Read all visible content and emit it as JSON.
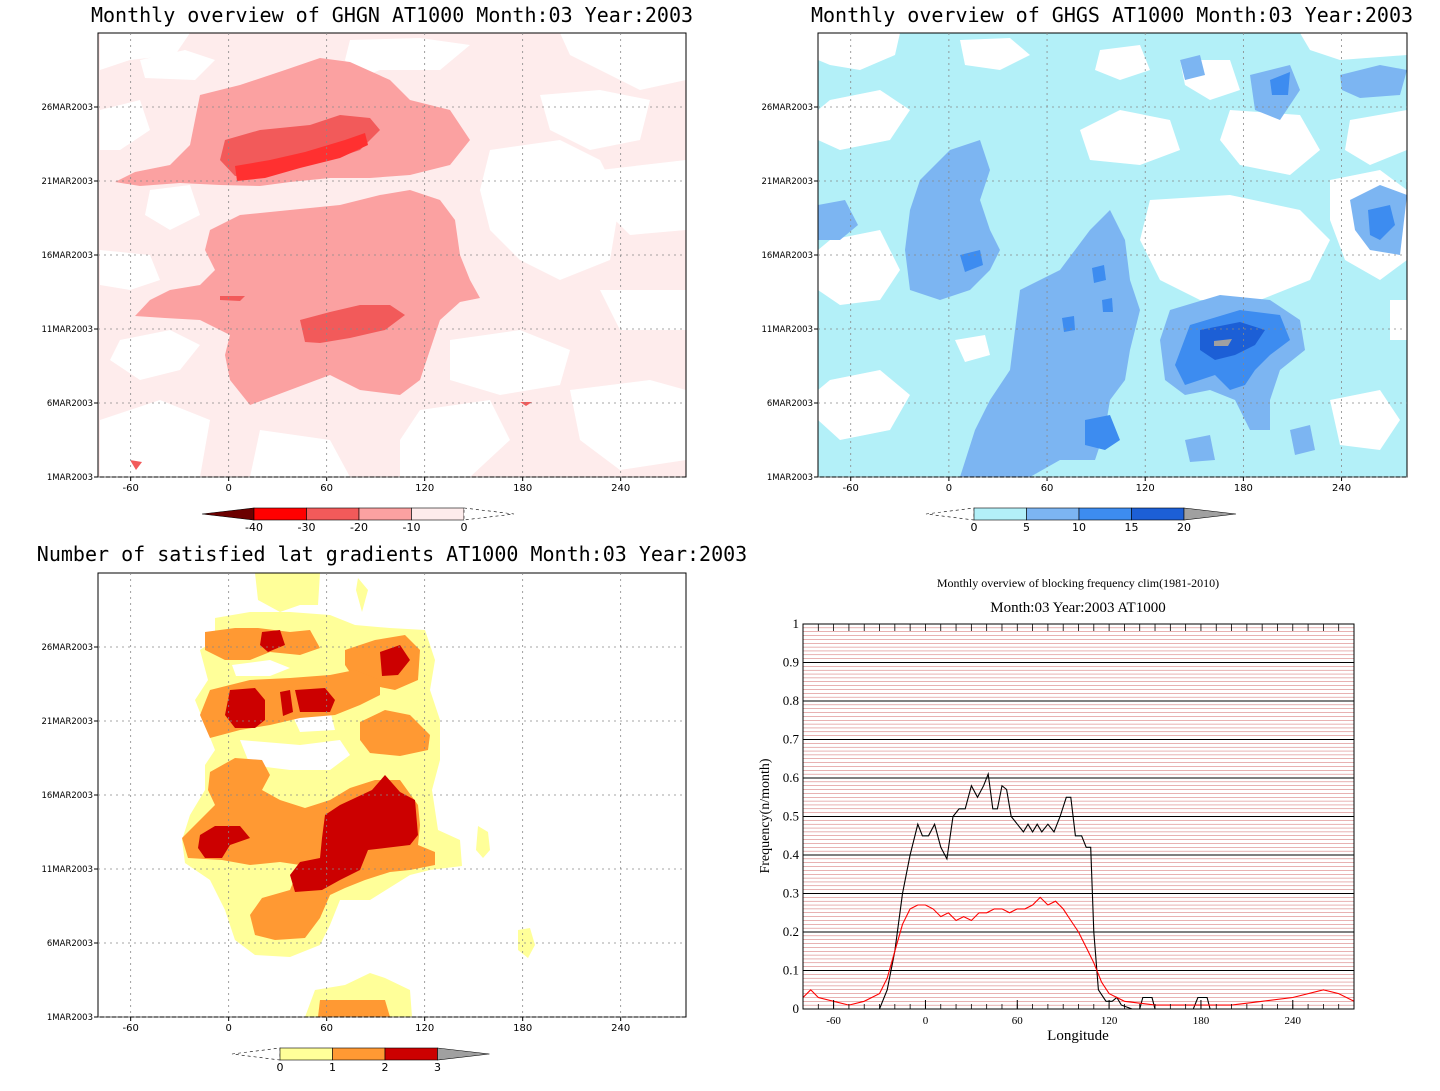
{
  "panels": {
    "ghgn": {
      "title": "Monthly overview of GHGN AT1000 Month:03 Year:2003",
      "colorbar": {
        "labels": [
          "-40",
          "-30",
          "-20",
          "-10",
          "0"
        ],
        "colors": [
          "#6b0000",
          "#ff0000",
          "#f25a5a",
          "#fba1a1",
          "#feecec"
        ]
      }
    },
    "ghgs": {
      "title": "Monthly overview of GHGS AT1000 Month:03 Year:2003",
      "colorbar": {
        "labels": [
          "0",
          "5",
          "10",
          "15",
          "20"
        ],
        "colors": [
          "#b3f0f8",
          "#7cb5f2",
          "#3d8cf0",
          "#1c5fd6",
          "#a0a0a0"
        ]
      }
    },
    "nsat": {
      "title": "Number of satisfied lat gradients AT1000 Month:03 Year:2003",
      "colorbar": {
        "labels": [
          "0",
          "1",
          "2",
          "3"
        ],
        "colors": [
          "#ffff99",
          "#ff9933",
          "#cc0000",
          "#a0a0a0"
        ]
      }
    }
  },
  "map_axes": {
    "x_ticks": [
      "-60",
      "0",
      "60",
      "120",
      "180",
      "240"
    ],
    "x_values": [
      -60,
      0,
      60,
      120,
      180,
      240
    ],
    "x_range": [
      -80,
      280
    ],
    "y_ticks": [
      "1MAR2003",
      "6MAR2003",
      "11MAR2003",
      "16MAR2003",
      "21MAR2003",
      "26MAR2003"
    ],
    "y_values": [
      1,
      6,
      11,
      16,
      21,
      26
    ],
    "y_range": [
      1,
      31
    ]
  },
  "chart_data": {
    "type": "line",
    "title": "Monthly overview of blocking frequency clim(1981-2010)",
    "subtitle": "Month:03 Year:2003  AT1000",
    "xlabel": "Longitude",
    "ylabel": "Frequency(n/month)",
    "xlim": [
      -80,
      280
    ],
    "ylim": [
      0,
      1
    ],
    "x_ticks": [
      -60,
      0,
      60,
      120,
      180,
      240
    ],
    "y_ticks": [
      0,
      0.1,
      0.2,
      0.3,
      0.4,
      0.5,
      0.6,
      0.7,
      0.8,
      0.9,
      1
    ],
    "grid": true,
    "series": [
      {
        "color": "#000000",
        "points": [
          [
            -80,
            0
          ],
          [
            -30,
            0
          ],
          [
            -25,
            0.05
          ],
          [
            -20,
            0.15
          ],
          [
            -15,
            0.3
          ],
          [
            -10,
            0.4
          ],
          [
            -5,
            0.48
          ],
          [
            -2,
            0.45
          ],
          [
            2,
            0.45
          ],
          [
            6,
            0.48
          ],
          [
            10,
            0.42
          ],
          [
            14,
            0.39
          ],
          [
            18,
            0.5
          ],
          [
            22,
            0.52
          ],
          [
            26,
            0.52
          ],
          [
            30,
            0.58
          ],
          [
            34,
            0.55
          ],
          [
            38,
            0.58
          ],
          [
            41,
            0.61
          ],
          [
            44,
            0.52
          ],
          [
            47,
            0.52
          ],
          [
            50,
            0.58
          ],
          [
            53,
            0.57
          ],
          [
            56,
            0.5
          ],
          [
            60,
            0.48
          ],
          [
            64,
            0.46
          ],
          [
            67,
            0.48
          ],
          [
            70,
            0.46
          ],
          [
            73,
            0.48
          ],
          [
            76,
            0.46
          ],
          [
            80,
            0.48
          ],
          [
            84,
            0.46
          ],
          [
            88,
            0.5
          ],
          [
            92,
            0.55
          ],
          [
            95,
            0.55
          ],
          [
            98,
            0.45
          ],
          [
            102,
            0.45
          ],
          [
            105,
            0.42
          ],
          [
            108,
            0.42
          ],
          [
            110,
            0.2
          ],
          [
            113,
            0.05
          ],
          [
            118,
            0.02
          ],
          [
            122,
            0.02
          ],
          [
            125,
            0.03
          ],
          [
            128,
            0.01
          ],
          [
            135,
            0
          ],
          [
            140,
            0
          ],
          [
            142,
            0.03
          ],
          [
            148,
            0.03
          ],
          [
            150,
            0
          ],
          [
            175,
            0
          ],
          [
            178,
            0.03
          ],
          [
            184,
            0.03
          ],
          [
            186,
            0
          ],
          [
            280,
            0
          ]
        ]
      },
      {
        "color": "#ff0000",
        "points": [
          [
            -80,
            0.03
          ],
          [
            -75,
            0.05
          ],
          [
            -70,
            0.03
          ],
          [
            -60,
            0.02
          ],
          [
            -50,
            0.01
          ],
          [
            -40,
            0.02
          ],
          [
            -30,
            0.04
          ],
          [
            -25,
            0.08
          ],
          [
            -20,
            0.15
          ],
          [
            -15,
            0.22
          ],
          [
            -10,
            0.26
          ],
          [
            -5,
            0.27
          ],
          [
            0,
            0.27
          ],
          [
            5,
            0.26
          ],
          [
            10,
            0.24
          ],
          [
            15,
            0.25
          ],
          [
            20,
            0.23
          ],
          [
            25,
            0.24
          ],
          [
            30,
            0.23
          ],
          [
            35,
            0.25
          ],
          [
            40,
            0.25
          ],
          [
            45,
            0.26
          ],
          [
            50,
            0.26
          ],
          [
            55,
            0.25
          ],
          [
            60,
            0.26
          ],
          [
            65,
            0.26
          ],
          [
            70,
            0.27
          ],
          [
            75,
            0.29
          ],
          [
            80,
            0.27
          ],
          [
            85,
            0.28
          ],
          [
            90,
            0.26
          ],
          [
            95,
            0.23
          ],
          [
            100,
            0.2
          ],
          [
            105,
            0.16
          ],
          [
            110,
            0.12
          ],
          [
            115,
            0.07
          ],
          [
            120,
            0.04
          ],
          [
            130,
            0.02
          ],
          [
            150,
            0.01
          ],
          [
            170,
            0.01
          ],
          [
            200,
            0.01
          ],
          [
            220,
            0.02
          ],
          [
            240,
            0.03
          ],
          [
            260,
            0.05
          ],
          [
            270,
            0.04
          ],
          [
            280,
            0.02
          ]
        ]
      }
    ]
  }
}
